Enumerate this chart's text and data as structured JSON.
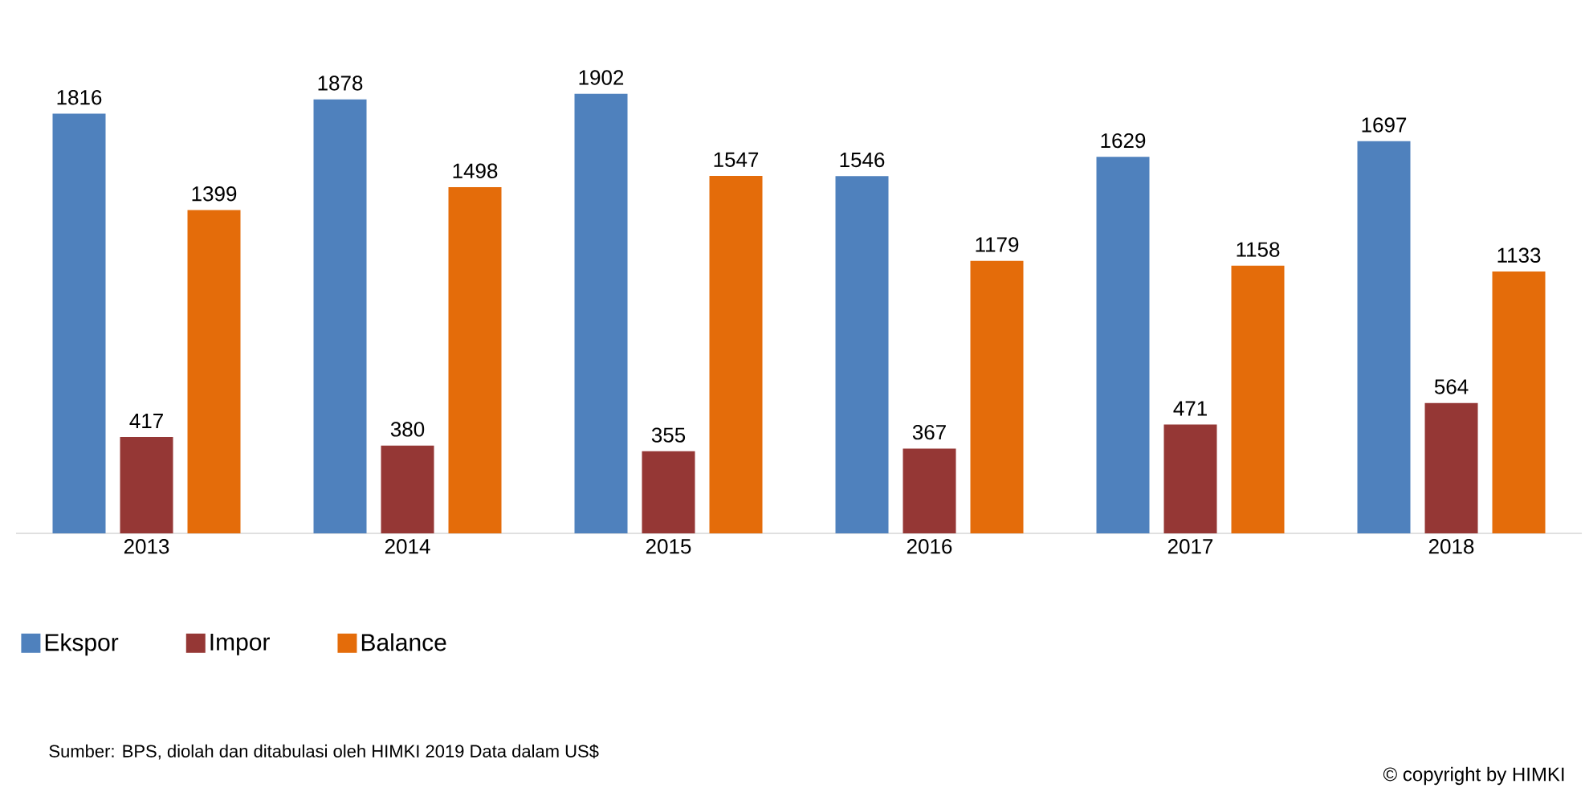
{
  "chart_data": {
    "type": "bar",
    "categories": [
      "2013",
      "2014",
      "2015",
      "2016",
      "2017",
      "2018"
    ],
    "series": [
      {
        "name": "Ekspor",
        "color": "#4f81bd",
        "values": [
          1816,
          1878,
          1902,
          1546,
          1629,
          1697
        ]
      },
      {
        "name": "Impor",
        "color": "#953735",
        "values": [
          417,
          380,
          355,
          367,
          471,
          564
        ]
      },
      {
        "name": "Balance",
        "color": "#e46c0a",
        "values": [
          1399,
          1498,
          1547,
          1179,
          1158,
          1133
        ]
      }
    ],
    "data_labels": true,
    "legend": "bottom",
    "annotations": [
      "Sumber: BPS, diolah dan ditabulasi oleh HIMKI 2019 Data dalam US$",
      "© copyright by HIMKI"
    ]
  }
}
